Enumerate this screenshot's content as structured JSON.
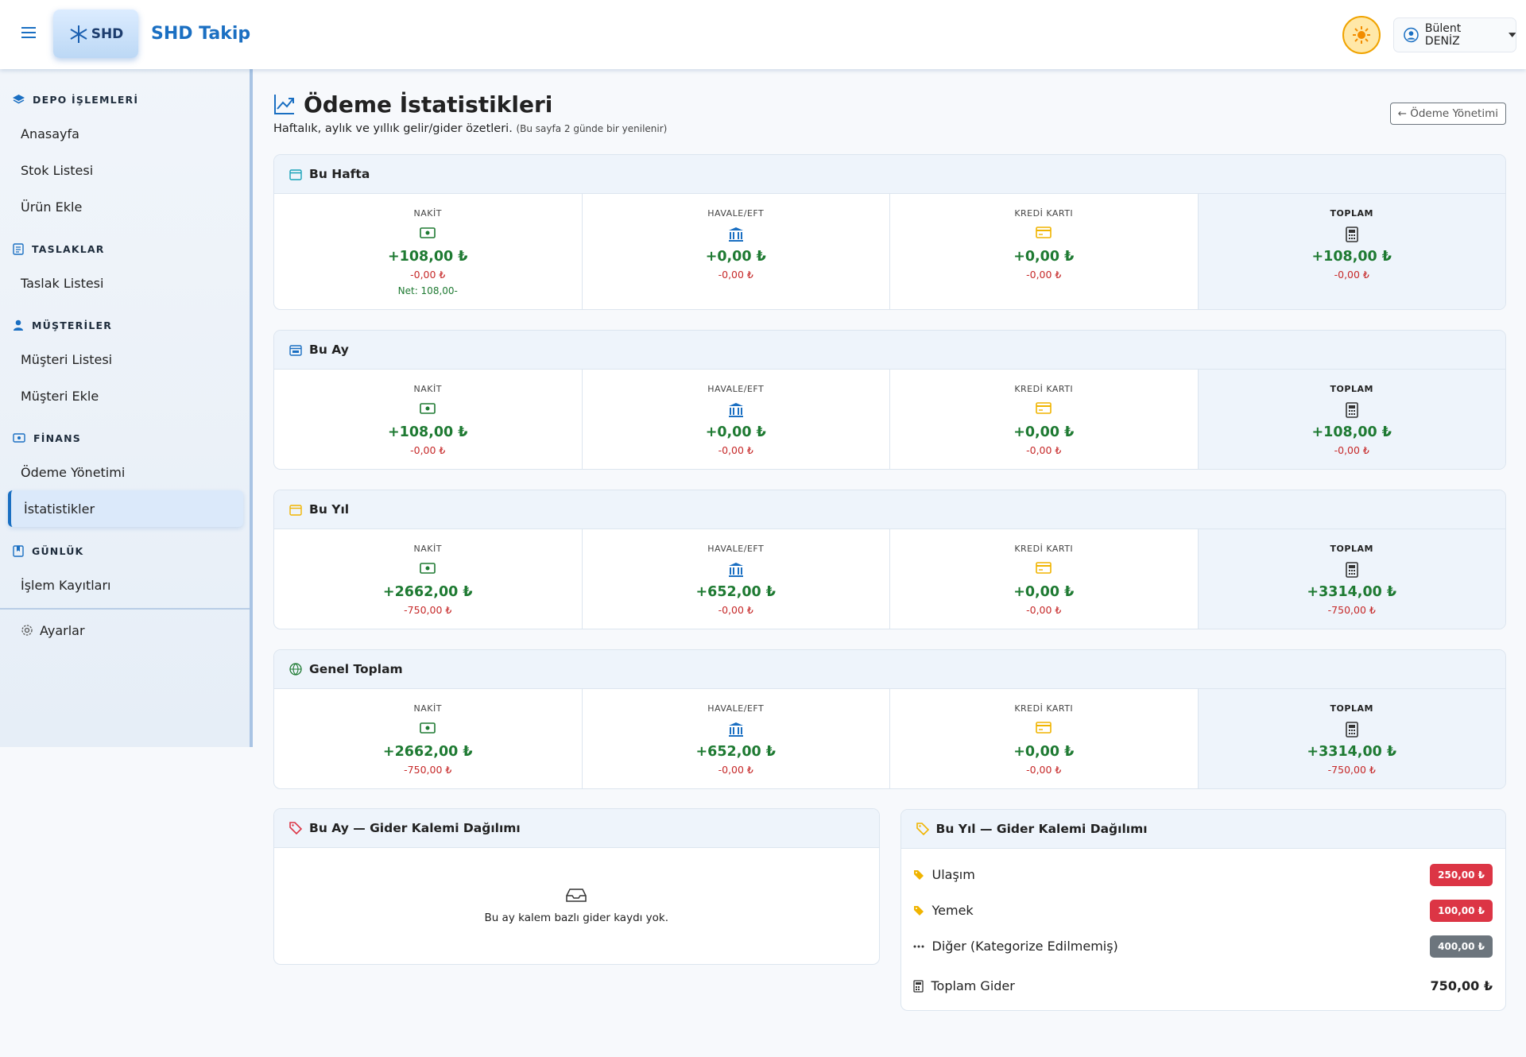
{
  "header": {
    "logo": "SHD",
    "brand": "SHD Takip",
    "user": "Bülent DENİZ"
  },
  "sidebar": {
    "sections": [
      {
        "title": "DEPO İŞLEMLERİ",
        "items": [
          "Anasayfa",
          "Stok Listesi",
          "Ürün Ekle"
        ]
      },
      {
        "title": "TASLAKLAR",
        "items": [
          "Taslak Listesi"
        ]
      },
      {
        "title": "MÜŞTERİLER",
        "items": [
          "Müşteri Listesi",
          "Müşteri Ekle"
        ]
      },
      {
        "title": "FİNANS",
        "items": [
          "Ödeme Yönetimi",
          "İstatistikler"
        ]
      },
      {
        "title": "GÜNLÜK",
        "items": [
          "İşlem Kayıtları"
        ]
      }
    ],
    "settings": "Ayarlar"
  },
  "page": {
    "title": "Ödeme İstatistikleri",
    "subtitle": "Haftalık, aylık ve yıllık gelir/gider özetleri.",
    "note": "(Bu sayfa 2 günde bir yenilenir)",
    "back_button": "Ödeme Yönetimi"
  },
  "column_labels": [
    "NAKİT",
    "HAVALE/EFT",
    "KREDİ KARTI",
    "TOPLAM"
  ],
  "periods": [
    {
      "title": "Bu Hafta",
      "columns": [
        {
          "income": "+108,00 ₺",
          "expense": "-0,00 ₺",
          "net": "Net: 108,00-"
        },
        {
          "income": "+0,00 ₺",
          "expense": "-0,00 ₺"
        },
        {
          "income": "+0,00 ₺",
          "expense": "-0,00 ₺"
        },
        {
          "income": "+108,00 ₺",
          "expense": "-0,00 ₺"
        }
      ]
    },
    {
      "title": "Bu Ay",
      "columns": [
        {
          "income": "+108,00 ₺",
          "expense": "-0,00 ₺"
        },
        {
          "income": "+0,00 ₺",
          "expense": "-0,00 ₺"
        },
        {
          "income": "+0,00 ₺",
          "expense": "-0,00 ₺"
        },
        {
          "income": "+108,00 ₺",
          "expense": "-0,00 ₺"
        }
      ]
    },
    {
      "title": "Bu Yıl",
      "columns": [
        {
          "income": "+2662,00 ₺",
          "expense": "-750,00 ₺"
        },
        {
          "income": "+652,00 ₺",
          "expense": "-0,00 ₺"
        },
        {
          "income": "+0,00 ₺",
          "expense": "-0,00 ₺"
        },
        {
          "income": "+3314,00 ₺",
          "expense": "-750,00 ₺"
        }
      ]
    },
    {
      "title": "Genel Toplam",
      "columns": [
        {
          "income": "+2662,00 ₺",
          "expense": "-750,00 ₺"
        },
        {
          "income": "+652,00 ₺",
          "expense": "-0,00 ₺"
        },
        {
          "income": "+0,00 ₺",
          "expense": "-0,00 ₺"
        },
        {
          "income": "+3314,00 ₺",
          "expense": "-750,00 ₺"
        }
      ]
    }
  ],
  "month_breakdown": {
    "title": "Bu Ay — Gider Kalemi Dağılımı",
    "empty": "Bu ay kalem bazlı gider kaydı yok."
  },
  "year_breakdown": {
    "title": "Bu Yıl — Gider Kalemi Dağılımı",
    "items": [
      {
        "label": "Ulaşım",
        "amount": "250,00 ₺",
        "color": "#dc3545"
      },
      {
        "label": "Yemek",
        "amount": "100,00 ₺",
        "color": "#dc3545"
      },
      {
        "label": "Diğer (Kategorize Edilmemiş)",
        "amount": "400,00 ₺",
        "color": "#6c757d"
      }
    ],
    "total_label": "Toplam Gider",
    "total": "750,00 ₺"
  }
}
